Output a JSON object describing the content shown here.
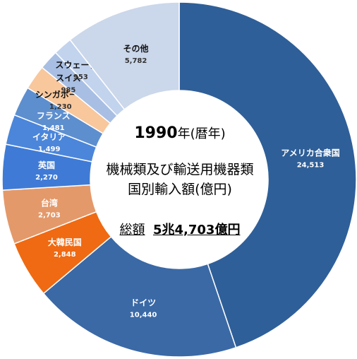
{
  "chart_data": {
    "type": "pie",
    "title_year": "1990",
    "title_year_unit": "年",
    "title_year_note": "(暦年)",
    "title_line1": "機械類及び輸送用機器類",
    "title_line2": "国別輸入額(億円)",
    "total_label": "総額",
    "total_value": "5兆4,703億円",
    "slices": [
      {
        "label": "アメリカ合衆国",
        "value": 24513,
        "value_text": "24,513",
        "color": "#2f5f98"
      },
      {
        "label": "ドイツ",
        "value": 10440,
        "value_text": "10,440",
        "color": "#3a69a6"
      },
      {
        "label": "大韓民国",
        "value": 2848,
        "value_text": "2,848",
        "color": "#ef6a12"
      },
      {
        "label": "台湾",
        "value": 2703,
        "value_text": "2,703",
        "color": "#e4996a"
      },
      {
        "label": "英国",
        "value": 2270,
        "value_text": "2,270",
        "color": "#3f7bd6"
      },
      {
        "label": "イタリア",
        "value": 1499,
        "value_text": "1,499",
        "color": "#4b86da"
      },
      {
        "label": "フランス",
        "value": 1481,
        "value_text": "1,481",
        "color": "#5d8fcf"
      },
      {
        "label": "シンガポール",
        "value": 1230,
        "value_text": "1,230",
        "color": "#f8c79c"
      },
      {
        "label": "スイス",
        "value": 985,
        "value_text": "985",
        "color": "#a8bfe3"
      },
      {
        "label": "スウェーデン",
        "value": 953,
        "value_text": "953",
        "color": "#c2d3ee"
      },
      {
        "label": "その他",
        "value": 5782,
        "value_text": "5,782",
        "color": "#cbd7ea"
      }
    ]
  }
}
